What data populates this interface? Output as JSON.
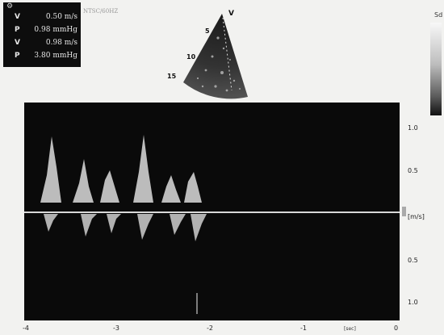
{
  "measurements": [
    {
      "label": "V",
      "value": "0.50 m/s"
    },
    {
      "label": "P",
      "value": "0.98 mmHg"
    },
    {
      "label": "V",
      "value": "0.98 m/s"
    },
    {
      "label": "P",
      "value": "3.80 mmHg"
    }
  ],
  "header_text": "NTSC/60HZ",
  "corner_label": "Sd",
  "sector": {
    "probe_marker": "V",
    "depth_labels": [
      "5",
      "10",
      "15"
    ]
  },
  "doppler": {
    "velocity_labels_upper": [
      "1.0",
      "0.5"
    ],
    "velocity_labels_lower": [
      "0.5",
      "1.0"
    ],
    "unit": "[m/s]",
    "time_labels": [
      "-4",
      "-3",
      "-2",
      "-1",
      "0"
    ],
    "time_unit": "[sec]"
  }
}
